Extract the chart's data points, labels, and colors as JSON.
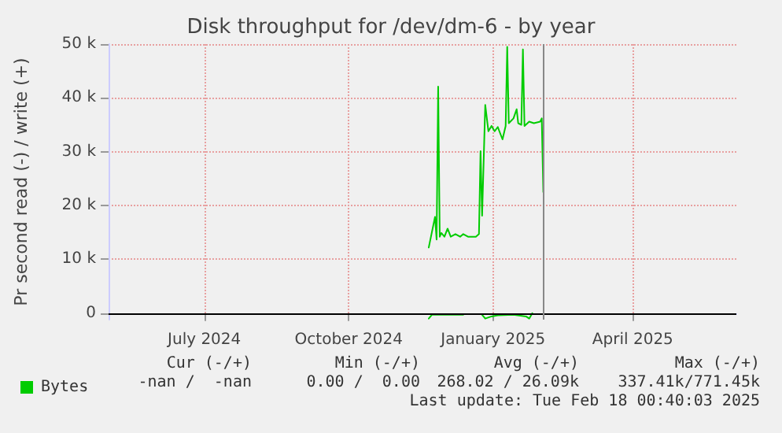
{
  "chart_data": {
    "type": "line",
    "title": "Disk throughput for /dev/dm-6 - by year",
    "ylabel": "Pr second read (-) / write (+)",
    "xlim": [
      "2024-05-17",
      "2025-06-21"
    ],
    "xticks": [
      {
        "value": "2024-07-17",
        "label": "July 2024"
      },
      {
        "value": "2024-10-17",
        "label": "October 2024"
      },
      {
        "value": "2025-01-17",
        "label": "January 2025"
      },
      {
        "value": "2025-04-16",
        "label": "April 2025"
      }
    ],
    "ylim": [
      -1200,
      50000
    ],
    "yticks": [
      0,
      {
        "value": 10000,
        "label": "10 k"
      },
      {
        "value": 20000,
        "label": "20 k"
      },
      {
        "value": 30000,
        "label": "30 k"
      },
      {
        "value": 40000,
        "label": "40 k"
      },
      {
        "value": 50000,
        "label": "50 k"
      }
    ],
    "series": [
      {
        "name": "Bytes",
        "color": "#00cc00",
        "x": [
          "2024-12-07",
          "2024-12-11",
          "2024-12-12",
          "2024-12-13",
          "2024-12-14",
          "2024-12-15",
          "2024-12-17",
          "2024-12-19",
          "2024-12-21",
          "2024-12-24",
          "2024-12-27",
          "2024-12-29",
          "2025-01-01",
          "2025-01-06",
          "2025-01-08",
          "2025-01-09",
          "2025-01-10",
          "2025-01-12",
          "2025-01-14",
          "2025-01-16",
          "2025-01-18",
          "2025-01-20",
          "2025-01-21",
          "2025-01-23",
          "2025-01-25",
          "2025-01-26",
          "2025-01-27",
          "2025-01-30",
          "2025-02-01",
          "2025-02-02",
          "2025-02-04",
          "2025-02-05",
          "2025-02-06",
          "2025-02-09",
          "2025-02-12",
          "2025-02-16",
          "2025-02-17",
          "2025-02-18"
        ],
        "values": [
          12200,
          17900,
          13700,
          42100,
          14200,
          14900,
          14200,
          15700,
          14200,
          14700,
          14200,
          14700,
          14200,
          14200,
          14700,
          30100,
          18100,
          38700,
          33800,
          34800,
          33800,
          34600,
          33800,
          32300,
          34800,
          49500,
          35300,
          36200,
          37900,
          35300,
          35000,
          49000,
          34800,
          35600,
          35300,
          35600,
          36200,
          22500
        ]
      },
      {
        "color": "#00cc00",
        "x": [
          "2024-12-07",
          "2024-12-09",
          "2024-12-19",
          "2024-12-29",
          "2025-01-04",
          "2025-01-10",
          "2025-01-12",
          "2025-01-16",
          "2025-01-20",
          "2025-01-30",
          "2025-02-07",
          "2025-02-09",
          "2025-02-11"
        ],
        "values": [
          -1000,
          -300,
          -300,
          -300,
          null,
          -300,
          -1000,
          -600,
          -400,
          -300,
          -600,
          -1000,
          0
        ]
      }
    ],
    "ref_lines": [
      {
        "axis": "y",
        "value": 0,
        "color": "#000000"
      },
      {
        "axis": "x",
        "value": "2025-02-18",
        "color": "#888888"
      }
    ],
    "annotations": [
      "Cur (-/+)",
      "Min (-/+)",
      "Avg (-/+)",
      "Max (-/+)",
      "-nan /  -nan",
      "0.00 /  0.00",
      "268.02 / 26.09k",
      "337.41k/771.45k",
      "Last update: Tue Feb 18 00:40:03 2025"
    ],
    "grid": true,
    "legend": "bottom left",
    "marker": "none",
    "line_style": "solid"
  }
}
